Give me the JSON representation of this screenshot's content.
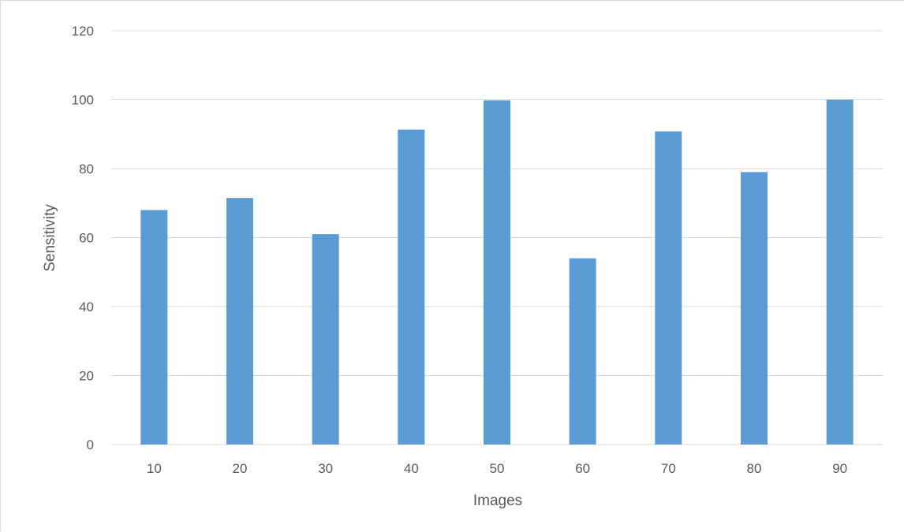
{
  "chart_data": {
    "type": "bar",
    "title": "",
    "xlabel": "Images",
    "ylabel": "Sensitivity",
    "categories": [
      "10",
      "20",
      "30",
      "40",
      "50",
      "60",
      "70",
      "80",
      "90"
    ],
    "values": [
      68,
      71.5,
      61,
      91.3,
      99.8,
      54,
      90.8,
      79,
      100
    ],
    "ylim": [
      0,
      120
    ],
    "yticks": [
      "0",
      "20",
      "40",
      "60",
      "80",
      "100",
      "120"
    ],
    "grid": "horizontal",
    "legend": "none",
    "colors": {
      "bar": "#5b9bd5",
      "grid": "#d9d9d9",
      "text": "#595959"
    }
  }
}
